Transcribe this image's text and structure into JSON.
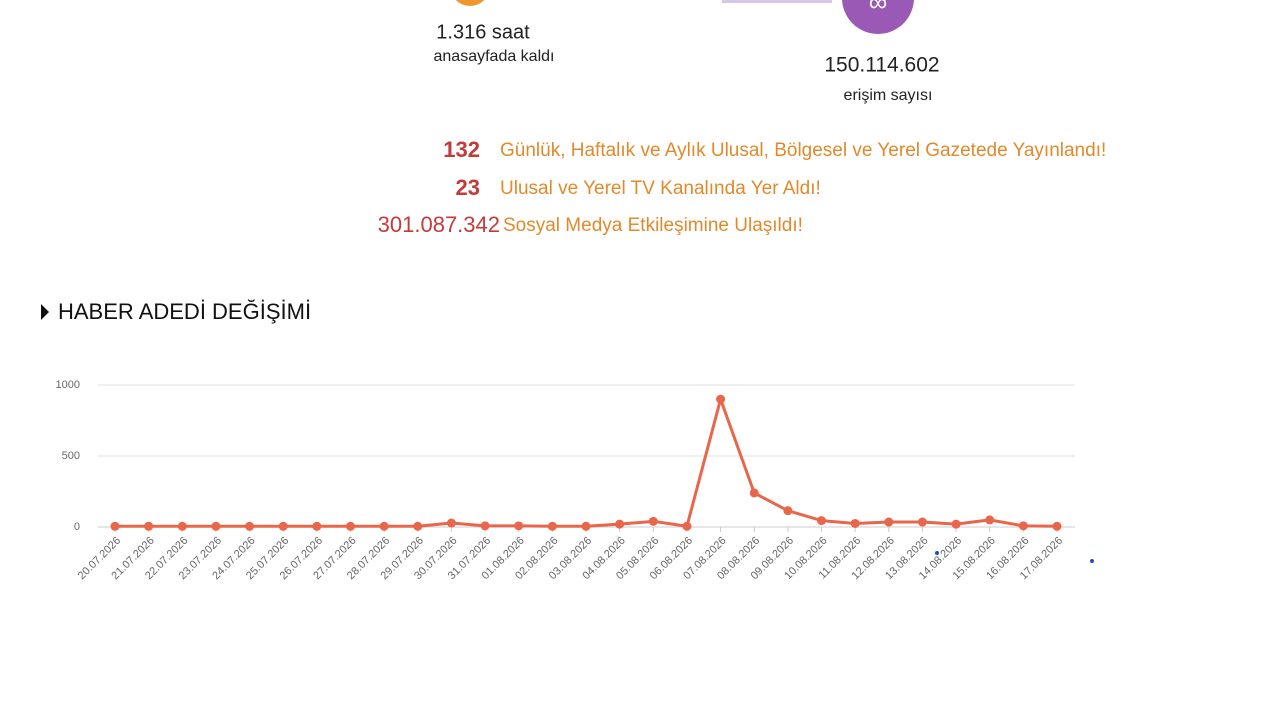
{
  "stats": [
    {
      "value": "1.316 saat",
      "label": "anasayfada kaldı"
    },
    {
      "value": "150.114.602",
      "label": "erişim sayısı"
    }
  ],
  "highlights": [
    {
      "number": "132",
      "text": "Günlük, Haftalık ve Aylık Ulusal, Bölgesel ve Yerel Gazetede Yayınlandı!"
    },
    {
      "number": "23",
      "text": "Ulusal ve Yerel TV Kanalında Yer Aldı!"
    },
    {
      "number": "301.087.342",
      "text": "Sosyal Medya Etkileşimine Ulaşıldı!"
    }
  ],
  "chart_data": {
    "type": "line",
    "title": "HABER ADEDİ DEĞİŞİMİ",
    "categories": [
      "20.07.2026",
      "21.07.2026",
      "22.07.2026",
      "23.07.2026",
      "24.07.2026",
      "25.07.2026",
      "26.07.2026",
      "27.07.2026",
      "28.07.2026",
      "29.07.2026",
      "30.07.2026",
      "31.07.2026",
      "01.08.2026",
      "02.08.2026",
      "03.08.2026",
      "04.08.2026",
      "05.08.2026",
      "06.08.2026",
      "07.08.2026",
      "08.08.2026",
      "09.08.2026",
      "10.08.2026",
      "11.08.2026",
      "12.08.2026",
      "13.08.2026",
      "14.08.2026",
      "15.08.2026",
      "16.08.2026",
      "17.08.2026"
    ],
    "values": [
      5,
      5,
      5,
      5,
      5,
      5,
      5,
      5,
      5,
      5,
      28,
      8,
      8,
      5,
      5,
      20,
      40,
      5,
      900,
      240,
      115,
      45,
      25,
      35,
      35,
      20,
      50,
      8,
      5
    ],
    "color": "#e8664a",
    "ylim": [
      0,
      1000
    ],
    "yticks": [
      0,
      500,
      1000
    ],
    "grid": true
  }
}
